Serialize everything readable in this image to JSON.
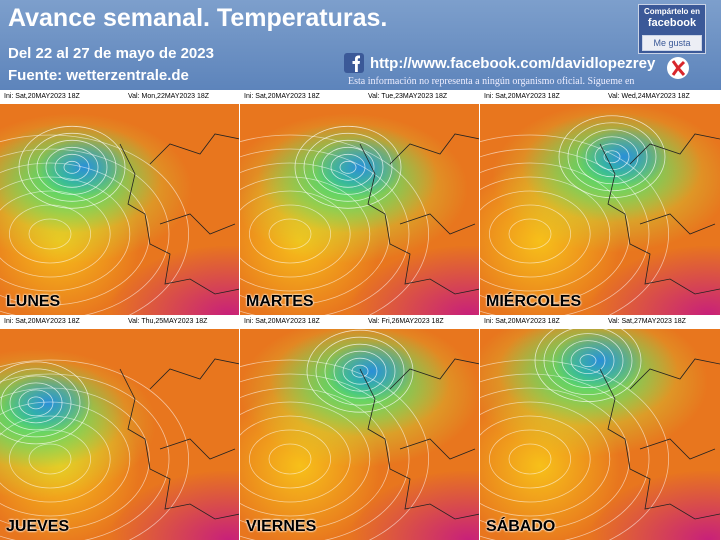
{
  "header": {
    "title": "Avance semanal. Temperaturas.",
    "subtitle": "Del 22 al 27 de mayo de 2023",
    "source": "Fuente: wetterzentrale.de",
    "link": "http://www.facebook.com/davidlopezrey",
    "disclaimer": "Esta información no representa a ningún organismo oficial. Sígueme en",
    "share": {
      "line1": "Compártelo en",
      "line2": "facebook",
      "button": "Me gusta"
    }
  },
  "panels": [
    {
      "init": "Ini: Sat,20MAY2023 18Z",
      "valid": "Val: Mon,22MAY2023 18Z",
      "day": "LUNES"
    },
    {
      "init": "Ini: Sat,20MAY2023 18Z",
      "valid": "Val: Tue,23MAY2023 18Z",
      "day": "MARTES"
    },
    {
      "init": "Ini: Sat,20MAY2023 18Z",
      "valid": "Val: Wed,24MAY2023 18Z",
      "day": "MIÉRCOLES"
    },
    {
      "init": "Ini: Sat,20MAY2023 18Z",
      "valid": "Val: Thu,25MAY2023 18Z",
      "day": "JUEVES"
    },
    {
      "init": "Ini: Sat,20MAY2023 18Z",
      "valid": "Val: Fri,26MAY2023 18Z",
      "day": "VIERNES"
    },
    {
      "init": "Ini: Sat,20MAY2023 18Z",
      "valid": "Val: Sat,27MAY2023 18Z",
      "day": "SÁBADO"
    }
  ]
}
